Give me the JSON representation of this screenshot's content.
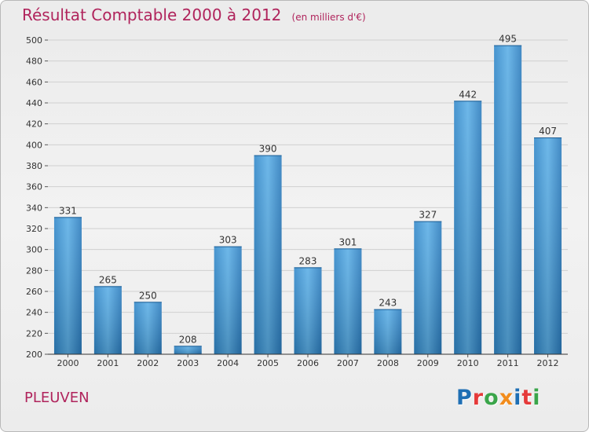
{
  "chart_data": {
    "type": "bar",
    "title": "Résultat Comptable 2000 à 2012",
    "subtitle": "(en milliers d'€)",
    "categories": [
      "2000",
      "2001",
      "2002",
      "2003",
      "2004",
      "2005",
      "2006",
      "2007",
      "2008",
      "2009",
      "2010",
      "2011",
      "2012"
    ],
    "values": [
      331,
      265,
      250,
      208,
      303,
      390,
      283,
      301,
      243,
      327,
      442,
      495,
      407
    ],
    "data_labels": [
      "331",
      "265",
      "250",
      "208",
      "303",
      "390",
      "283",
      "301",
      "243",
      "327",
      "442",
      "495",
      "407"
    ],
    "ylim": [
      200,
      500
    ],
    "yticks": [
      200,
      220,
      240,
      260,
      280,
      300,
      320,
      340,
      360,
      380,
      400,
      420,
      440,
      460,
      480,
      500
    ],
    "grid": true,
    "bar_color": "#3c95d6",
    "legend": "none"
  },
  "commune": "PLEUVEN",
  "logo": {
    "text": "Proxiti",
    "letters": [
      {
        "ch": "P",
        "color": "#1f6fb4"
      },
      {
        "ch": "r",
        "color": "#e53a3a"
      },
      {
        "ch": "o",
        "color": "#3aa54a"
      },
      {
        "ch": "x",
        "color": "#f28c1c"
      },
      {
        "ch": "i",
        "color": "#1f6fb4"
      },
      {
        "ch": "t",
        "color": "#e53a3a"
      },
      {
        "ch": "i",
        "color": "#3aa54a"
      }
    ]
  },
  "colors": {
    "title": "#b0245c",
    "axis": "#333333",
    "grid": "#d0d0d0"
  }
}
